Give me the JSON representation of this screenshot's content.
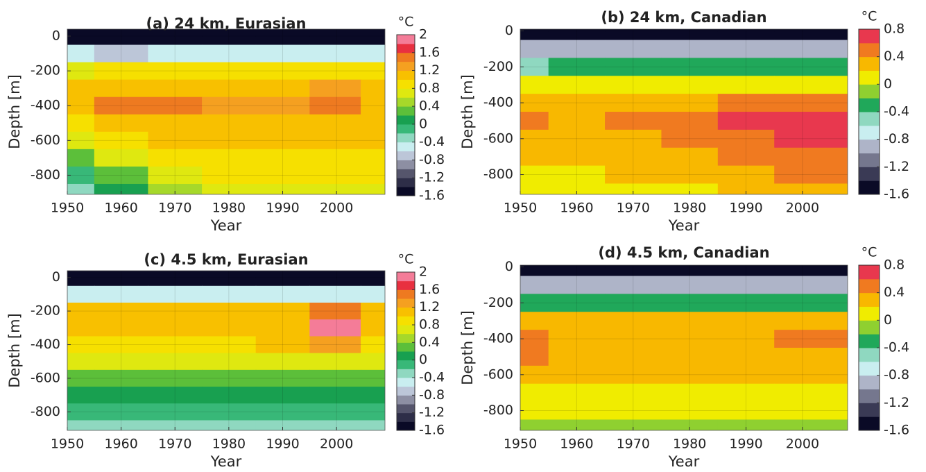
{
  "chart_data": [
    {
      "type": "contour",
      "title": "(a) 24 km, Eurasian",
      "xlabel": "Year",
      "ylabel": "Depth [m]",
      "colorbar_label": "°C",
      "x": [
        1950,
        1960,
        1970,
        1980,
        1990,
        2000,
        2009
      ],
      "y": [
        0,
        -100,
        -200,
        -300,
        -400,
        -500,
        -600,
        -700,
        -800,
        -900
      ],
      "z": [
        [
          -1.6,
          -1.6,
          -1.6,
          -1.6,
          -1.6,
          -1.6,
          -1.6
        ],
        [
          -0.6,
          -0.8,
          -0.6,
          -0.6,
          -0.6,
          -0.6,
          -0.6
        ],
        [
          0.6,
          0.8,
          0.8,
          0.8,
          0.8,
          0.8,
          0.8
        ],
        [
          1.0,
          1.2,
          1.2,
          1.2,
          1.2,
          1.3,
          1.2
        ],
        [
          1.1,
          1.4,
          1.4,
          1.3,
          1.3,
          1.5,
          1.2
        ],
        [
          0.9,
          1.1,
          1.2,
          1.1,
          1.1,
          1.2,
          1.1
        ],
        [
          0.6,
          0.9,
          1.0,
          1.0,
          1.0,
          1.0,
          1.0
        ],
        [
          0.2,
          0.6,
          0.9,
          0.9,
          0.9,
          0.9,
          0.9
        ],
        [
          -0.2,
          0.3,
          0.7,
          0.8,
          0.8,
          0.8,
          0.8
        ],
        [
          -0.4,
          0.1,
          0.5,
          0.6,
          0.6,
          0.6,
          0.6
        ]
      ],
      "xlim": [
        1950,
        2009
      ],
      "ylim": [
        -910,
        40
      ],
      "xticks": [
        1950,
        1960,
        1970,
        1980,
        1990,
        2000
      ],
      "yticks": [
        0,
        -200,
        -400,
        -600,
        -800
      ],
      "clim": [
        -1.6,
        2
      ],
      "cticks": [
        -1.6,
        -1.2,
        -0.8,
        -0.4,
        0,
        0.4,
        0.8,
        1.2,
        1.6,
        2
      ],
      "colors": [
        "#0a0a26",
        "#2e2e48",
        "#55556c",
        "#8d8fa3",
        "#bcc6d8",
        "#c9eef0",
        "#8fd8c0",
        "#38b878",
        "#18a050",
        "#5cbf3a",
        "#a6d82a",
        "#dfe810",
        "#f6e000",
        "#f8c000",
        "#f5a020",
        "#ee7a20",
        "#e83040",
        "#f47c98"
      ],
      "grid": true
    },
    {
      "type": "contour",
      "title": "(b) 24 km, Canadian",
      "xlabel": "Year",
      "ylabel": "Depth [m]",
      "colorbar_label": "°C",
      "x": [
        1950,
        1960,
        1970,
        1980,
        1990,
        2000,
        2008
      ],
      "y": [
        0,
        -100,
        -200,
        -300,
        -400,
        -500,
        -600,
        -700,
        -800,
        -900
      ],
      "z": [
        [
          -1.6,
          -1.6,
          -1.6,
          -1.6,
          -1.6,
          -1.6,
          -1.6
        ],
        [
          -1.0,
          -1.0,
          -1.0,
          -0.9,
          -0.8,
          -0.8,
          -1.0
        ],
        [
          -0.5,
          -0.4,
          -0.4,
          -0.4,
          -0.4,
          -0.4,
          -0.4
        ],
        [
          0.2,
          0.2,
          0.2,
          0.2,
          0.2,
          0.2,
          0.2
        ],
        [
          0.4,
          0.3,
          0.4,
          0.4,
          0.5,
          0.6,
          0.6
        ],
        [
          0.5,
          0.4,
          0.45,
          0.45,
          0.65,
          0.75,
          0.8
        ],
        [
          0.4,
          0.4,
          0.4,
          0.45,
          0.6,
          0.7,
          0.7
        ],
        [
          0.3,
          0.3,
          0.35,
          0.4,
          0.5,
          0.6,
          0.6
        ],
        [
          0.2,
          0.2,
          0.25,
          0.3,
          0.35,
          0.45,
          0.45
        ],
        [
          0.05,
          0.1,
          0.15,
          0.2,
          0.25,
          0.3,
          0.35
        ]
      ],
      "xlim": [
        1950,
        2008
      ],
      "ylim": [
        -910,
        10
      ],
      "xticks": [
        1950,
        1960,
        1970,
        1980,
        1990,
        2000
      ],
      "yticks": [
        0,
        -200,
        -400,
        -600,
        -800
      ],
      "clim": [
        -1.6,
        0.8
      ],
      "cticks": [
        -1.6,
        -1.2,
        -0.8,
        -0.4,
        0,
        0.4,
        0.8
      ],
      "colors": [
        "#0a0a26",
        "#3a3a55",
        "#75778e",
        "#aeb4c8",
        "#c9eef0",
        "#8fd8c0",
        "#20a85a",
        "#8fd030",
        "#f0ec00",
        "#f8b800",
        "#f07a20",
        "#e8384e"
      ],
      "grid": true
    },
    {
      "type": "contour",
      "title": "(c) 4.5 km, Eurasian",
      "xlabel": "Year",
      "ylabel": "Depth [m]",
      "colorbar_label": "°C",
      "x": [
        1950,
        1960,
        1970,
        1980,
        1990,
        2000,
        2009
      ],
      "y": [
        0,
        -100,
        -200,
        -300,
        -400,
        -500,
        -600,
        -700,
        -800,
        -900
      ],
      "z": [
        [
          -1.6,
          -1.6,
          -1.6,
          -1.6,
          -1.6,
          -1.6,
          -1.6
        ],
        [
          -0.6,
          -0.6,
          -0.6,
          -0.6,
          -0.6,
          -0.6,
          -0.6
        ],
        [
          1.0,
          1.0,
          1.0,
          1.0,
          1.1,
          1.5,
          1.0
        ],
        [
          1.1,
          1.1,
          1.0,
          1.1,
          1.2,
          1.8,
          1.1
        ],
        [
          0.9,
          0.9,
          0.9,
          0.9,
          1.0,
          1.3,
          0.9
        ],
        [
          0.6,
          0.6,
          0.6,
          0.6,
          0.6,
          0.7,
          0.6
        ],
        [
          0.3,
          0.3,
          0.3,
          0.3,
          0.3,
          0.3,
          0.3
        ],
        [
          0.0,
          0.0,
          0.0,
          0.0,
          0.0,
          0.0,
          0.0
        ],
        [
          -0.2,
          -0.2,
          -0.2,
          -0.2,
          -0.2,
          -0.2,
          -0.2
        ],
        [
          -0.3,
          -0.3,
          -0.3,
          -0.3,
          -0.3,
          -0.3,
          -0.3
        ]
      ],
      "xlim": [
        1950,
        2009
      ],
      "ylim": [
        -910,
        40
      ],
      "xticks": [
        1950,
        1960,
        1970,
        1980,
        1990,
        2000
      ],
      "yticks": [
        0,
        -200,
        -400,
        -600,
        -800
      ],
      "clim": [
        -1.6,
        2
      ],
      "cticks": [
        -1.6,
        -1.2,
        -0.8,
        -0.4,
        0,
        0.4,
        0.8,
        1.2,
        1.6,
        2
      ],
      "colors": [
        "#0a0a26",
        "#2e2e48",
        "#55556c",
        "#8d8fa3",
        "#bcc6d8",
        "#c9eef0",
        "#8fd8c0",
        "#38b878",
        "#18a050",
        "#5cbf3a",
        "#a6d82a",
        "#dfe810",
        "#f6e000",
        "#f8c000",
        "#f5a020",
        "#ee7a20",
        "#e83040",
        "#f47c98"
      ],
      "grid": true
    },
    {
      "type": "contour",
      "title": "(d) 4.5 km, Canadian",
      "xlabel": "Year",
      "ylabel": "Depth [m]",
      "colorbar_label": "°C",
      "x": [
        1950,
        1960,
        1970,
        1980,
        1990,
        2000,
        2008
      ],
      "y": [
        0,
        -100,
        -200,
        -300,
        -400,
        -500,
        -600,
        -700,
        -800,
        -900
      ],
      "z": [
        [
          -1.6,
          -1.6,
          -1.6,
          -1.6,
          -1.6,
          -1.6,
          -1.6
        ],
        [
          -1.0,
          -1.0,
          -0.9,
          -0.9,
          -0.9,
          -0.9,
          -1.0
        ],
        [
          -0.4,
          -0.4,
          -0.4,
          -0.4,
          -0.4,
          -0.4,
          -0.4
        ],
        [
          0.3,
          0.3,
          0.3,
          0.3,
          0.3,
          0.3,
          0.3
        ],
        [
          0.45,
          0.4,
          0.4,
          0.4,
          0.4,
          0.45,
          0.45
        ],
        [
          0.45,
          0.35,
          0.35,
          0.35,
          0.35,
          0.4,
          0.4
        ],
        [
          0.3,
          0.3,
          0.3,
          0.3,
          0.3,
          0.3,
          0.3
        ],
        [
          0.2,
          0.2,
          0.2,
          0.2,
          0.2,
          0.2,
          0.2
        ],
        [
          0.1,
          0.1,
          0.1,
          0.1,
          0.1,
          0.1,
          0.1
        ],
        [
          0.0,
          0.0,
          0.0,
          0.0,
          0.0,
          0.0,
          0.0
        ]
      ],
      "xlim": [
        1950,
        2008
      ],
      "ylim": [
        -910,
        10
      ],
      "xticks": [
        1950,
        1960,
        1970,
        1980,
        1990,
        2000
      ],
      "yticks": [
        0,
        -200,
        -400,
        -600,
        -800
      ],
      "clim": [
        -1.6,
        0.8
      ],
      "cticks": [
        -1.6,
        -1.2,
        -0.8,
        -0.4,
        0,
        0.4,
        0.8
      ],
      "colors": [
        "#0a0a26",
        "#3a3a55",
        "#75778e",
        "#aeb4c8",
        "#c9eef0",
        "#8fd8c0",
        "#20a85a",
        "#8fd030",
        "#f0ec00",
        "#f8b800",
        "#f07a20",
        "#e8384e"
      ],
      "grid": true
    }
  ]
}
